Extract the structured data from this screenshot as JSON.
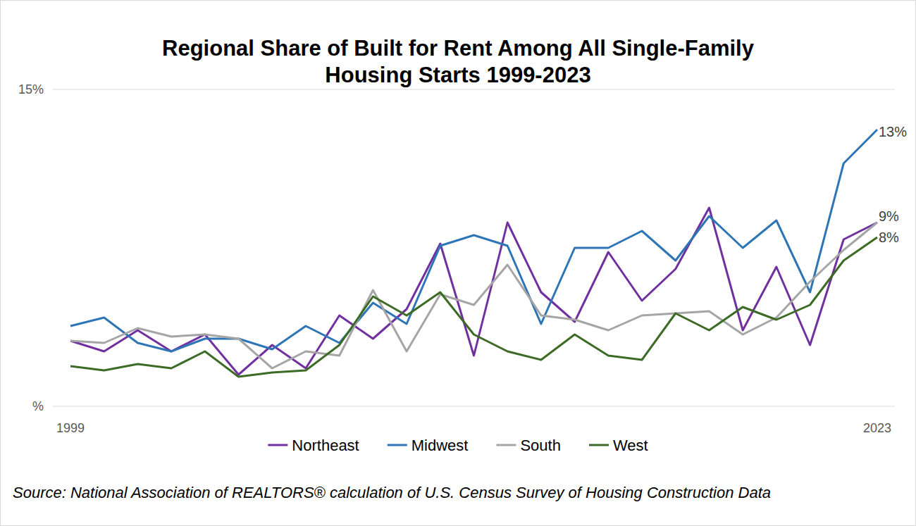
{
  "chart_data": {
    "type": "line",
    "title": "Regional Share of Built for Rent Among All Single-Family Housing Starts 1999-2023",
    "source": "Source: National Association of REALTORS® calculation of U.S. Census Survey of Housing Construction Data",
    "categories": [
      "1999",
      null,
      null,
      null,
      null,
      null,
      null,
      null,
      null,
      null,
      null,
      null,
      null,
      null,
      null,
      null,
      null,
      null,
      null,
      null,
      null,
      null,
      null,
      null,
      "2023"
    ],
    "series": [
      {
        "name": "Northeast",
        "color": "#7030a0",
        "values": [
          3.1,
          2.6,
          3.6,
          2.6,
          3.4,
          1.5,
          2.9,
          1.8,
          4.3,
          3.2,
          4.6,
          7.7,
          2.4,
          8.7,
          5.4,
          4.0,
          7.3,
          5.0,
          6.5,
          9.4,
          3.6,
          6.6,
          2.9,
          7.9,
          8.7
        ]
      },
      {
        "name": "Midwest",
        "color": "#2e75b6",
        "values": [
          3.8,
          4.2,
          3.0,
          2.6,
          3.2,
          3.2,
          2.7,
          3.8,
          3.0,
          4.9,
          3.9,
          7.6,
          8.1,
          7.6,
          3.9,
          7.5,
          7.5,
          8.3,
          6.9,
          9.0,
          7.5,
          8.8,
          5.4,
          11.5,
          13.1
        ]
      },
      {
        "name": "South",
        "color": "#a5a5a5",
        "values": [
          3.1,
          3.0,
          3.7,
          3.3,
          3.4,
          3.2,
          1.8,
          2.6,
          2.4,
          5.5,
          2.6,
          5.3,
          4.8,
          6.7,
          4.3,
          4.1,
          3.6,
          4.3,
          4.4,
          4.5,
          3.4,
          4.2,
          5.9,
          7.4,
          8.7
        ]
      },
      {
        "name": "West",
        "color": "#3b6b24",
        "values": [
          1.9,
          1.7,
          2.0,
          1.8,
          2.6,
          1.4,
          1.6,
          1.7,
          2.9,
          5.2,
          4.3,
          5.4,
          3.4,
          2.6,
          2.2,
          3.4,
          2.4,
          2.2,
          4.4,
          3.6,
          4.7,
          4.1,
          4.8,
          6.9,
          8.0
        ]
      }
    ],
    "annotations": [
      {
        "text": "13%",
        "value": 13
      },
      {
        "text": "9%",
        "value": 9
      },
      {
        "text": "8%",
        "value": 8
      }
    ],
    "ylim": [
      0,
      15
    ],
    "yticks": [
      {
        "value": 0,
        "label": "%"
      },
      {
        "value": 15,
        "label": "15%"
      }
    ],
    "grid": true,
    "legend": "bottom"
  }
}
